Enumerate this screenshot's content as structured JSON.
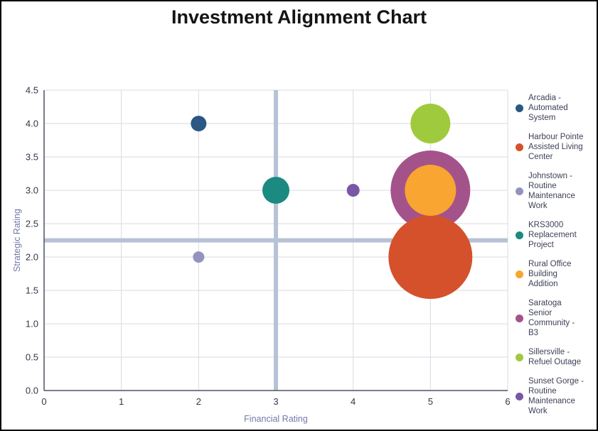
{
  "window_title": "Investment Alignment Chart",
  "chart_data": {
    "type": "scatter",
    "subtype": "bubble",
    "title": "Investment Alignment Chart",
    "xlabel": "Financial Rating",
    "ylabel": "Strategic Rating",
    "xlim": [
      0,
      6
    ],
    "ylim": [
      0,
      4.5
    ],
    "x_ticks": [
      0,
      1,
      2,
      3,
      4,
      5,
      6
    ],
    "x_tick_labels": [
      "0",
      "1",
      "2",
      "3",
      "4",
      "5",
      "6"
    ],
    "y_ticks": [
      0,
      0.5,
      1,
      1.5,
      2,
      2.5,
      3,
      3.5,
      4,
      4.5
    ],
    "y_tick_labels": [
      "0.0",
      "0.5",
      "1.0",
      "1.5",
      "2.0",
      "2.5",
      "3.0",
      "3.5",
      "4.0",
      "4.5"
    ],
    "grid": true,
    "legend_position": "right",
    "reference_lines": {
      "x_value": 3,
      "y_value": 2.25,
      "color": "#b7c2d6",
      "thickness_px": 6
    },
    "series": [
      {
        "name": "Arcadia - Automated System",
        "x": 2,
        "y": 4,
        "radius_px": 11,
        "color": "#2a5783"
      },
      {
        "name": "Harbour Pointe Assisted Living Center",
        "x": 5,
        "y": 2,
        "radius_px": 59,
        "color": "#d5512b"
      },
      {
        "name": "Johnstown - Routine Maintenance Work",
        "x": 2,
        "y": 2,
        "radius_px": 8,
        "color": "#9394bd"
      },
      {
        "name": "KRS3000 Replacement Project",
        "x": 3,
        "y": 3,
        "radius_px": 19,
        "color": "#1b8a80"
      },
      {
        "name": "Rural Office Building Addition",
        "x": 5,
        "y": 3,
        "radius_px": 36,
        "color": "#f8a531"
      },
      {
        "name": "Saratoga Senior Community - B3",
        "x": 5,
        "y": 3,
        "radius_px": 56,
        "color": "#a4538a"
      },
      {
        "name": "Sillersville - Refuel Outage",
        "x": 5,
        "y": 4,
        "radius_px": 28,
        "color": "#a0ca3e"
      },
      {
        "name": "Sunset Gorge - Routine Maintenance Work",
        "x": 4,
        "y": 3,
        "radius_px": 9,
        "color": "#7a57a6"
      }
    ],
    "draw_order": [
      0,
      2,
      3,
      5,
      1,
      4,
      6,
      7
    ]
  },
  "style_colors": {
    "gridline": "#d9dae3",
    "axis_line": "#4f5267",
    "tick_label": "#333549",
    "axis_title": "#7478ab",
    "legend_text": "#3e4157",
    "title": "#141414",
    "background": "#ffffff",
    "border": "#000000"
  }
}
